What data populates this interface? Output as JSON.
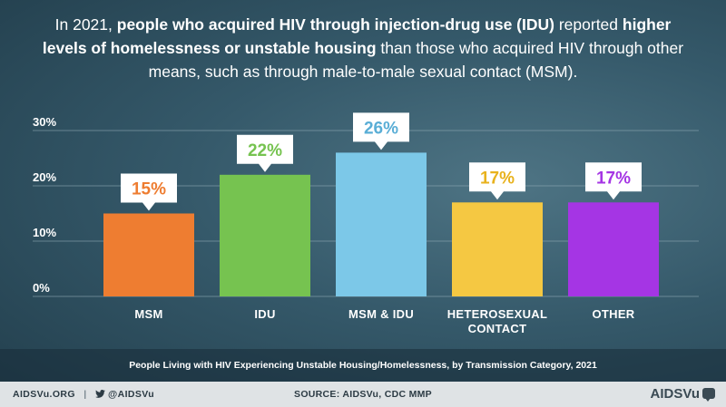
{
  "headline": {
    "part1": "In 2021, ",
    "bold1": "people who acquired HIV through injection-drug use (IDU)",
    "part2": " reported ",
    "bold2": "higher levels of homelessness or unstable housing",
    "part3": " than those who acquired HIV through other means, such as through male-to-male sexual contact (MSM)."
  },
  "chart_data": {
    "type": "bar",
    "categories": [
      "MSM",
      "IDU",
      "MSM & IDU",
      "HETEROSEXUAL CONTACT",
      "OTHER"
    ],
    "category_lines": [
      [
        "MSM"
      ],
      [
        "IDU"
      ],
      [
        "MSM & IDU"
      ],
      [
        "HETEROSEXUAL",
        "CONTACT"
      ],
      [
        "OTHER"
      ]
    ],
    "values": [
      15,
      22,
      26,
      17,
      17
    ],
    "data_labels": [
      "15%",
      "22%",
      "26%",
      "17%",
      "17%"
    ],
    "colors": [
      "#ee7d31",
      "#76c350",
      "#7cc8e8",
      "#f5c842",
      "#a535e4"
    ],
    "label_colors": [
      "#ee7d31",
      "#76c350",
      "#5aaed6",
      "#e8b21d",
      "#a535e4"
    ],
    "yticks": [
      0,
      10,
      20,
      30
    ],
    "ytick_labels": [
      "0%",
      "10%",
      "20%",
      "30%"
    ],
    "ylim": [
      0,
      30
    ],
    "grid": true
  },
  "caption": "People Living with HIV Experiencing Unstable Housing/Homelessness, by Transmission Category, 2021",
  "footer": {
    "site": "AIDSVu.ORG",
    "separator": "|",
    "handle": "@AIDSVu",
    "source": "SOURCE: AIDSVu, CDC MMP",
    "logo": "AIDSVu"
  }
}
